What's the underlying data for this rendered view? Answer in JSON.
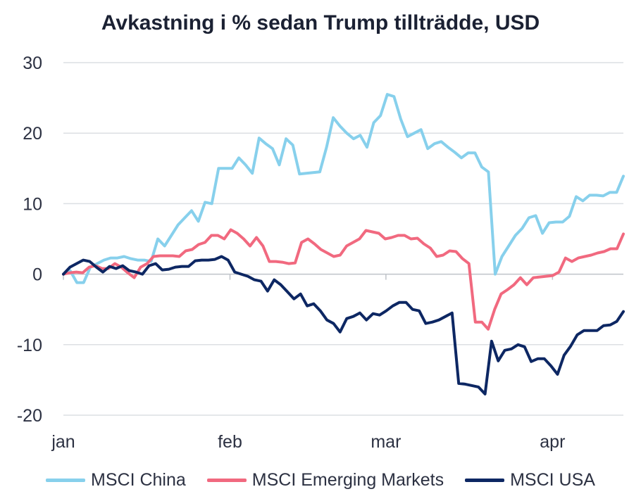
{
  "chart_data": {
    "type": "line",
    "title": "Avkastning i % sedan Trump tillträdde, USD",
    "xlabel": "",
    "ylabel": "",
    "ylim": [
      -20,
      30
    ],
    "yticks": [
      30,
      20,
      10,
      0,
      -10,
      -20
    ],
    "xlim": [
      0,
      79
    ],
    "xticks": [
      {
        "pos": 0,
        "label": "jan"
      },
      {
        "pos": 23.5,
        "label": "feb"
      },
      {
        "pos": 45.5,
        "label": "mar"
      },
      {
        "pos": 69,
        "label": "apr"
      }
    ],
    "grid": true,
    "legend_position": "bottom",
    "series": [
      {
        "name": "MSCI China",
        "color": "#87d0ec",
        "values": [
          0,
          0.5,
          -1.2,
          -1.2,
          1,
          1.5,
          2,
          2.3,
          2.3,
          2.5,
          2.2,
          2,
          2,
          1.8,
          5,
          4,
          5.5,
          7,
          8,
          9,
          7.5,
          10.2,
          10,
          15,
          15,
          15,
          16.5,
          15.5,
          14.3,
          19.3,
          18.5,
          17.8,
          15.5,
          19.2,
          18.3,
          14.2,
          14.3,
          14.4,
          14.5,
          18,
          22.2,
          21,
          20,
          19.2,
          19.7,
          18,
          21.5,
          22.5,
          25.5,
          25.2,
          22,
          19.5,
          20,
          20.5,
          17.8,
          18.5,
          18.8,
          18,
          17.3,
          16.5,
          17.2,
          17.2,
          15.2,
          14.5,
          0,
          2.5,
          4,
          5.5,
          6.5,
          8,
          8.3,
          5.8,
          7.3,
          7.4,
          7.4,
          8.2,
          11,
          10.4,
          11.2,
          11.2,
          11.1,
          11.6,
          11.6,
          13.9
        ]
      },
      {
        "name": "MSCI Emerging Markets",
        "color": "#f1697f",
        "values": [
          0,
          0.2,
          0.3,
          0.2,
          1,
          1.2,
          0.8,
          0.8,
          1.5,
          1,
          0.2,
          -0.5,
          1,
          1.5,
          2.5,
          2.6,
          2.6,
          2.6,
          2.5,
          3.3,
          3.5,
          4.2,
          4.5,
          5.5,
          5.5,
          5,
          6.3,
          5.8,
          5,
          4,
          5.2,
          4,
          1.8,
          1.8,
          1.7,
          1.5,
          1.6,
          4.5,
          5,
          4.3,
          3.5,
          3,
          2.5,
          2.7,
          4,
          4.5,
          5,
          6.2,
          6,
          5.8,
          5,
          5.2,
          5.5,
          5.5,
          5,
          5.1,
          4.3,
          3.7,
          2.5,
          2.7,
          3.3,
          3.2,
          2.2,
          1.5,
          -6.8,
          -6.8,
          -7.8,
          -5,
          -2.8,
          -2.2,
          -1.5,
          -0.5,
          -1.5,
          -0.5,
          -0.4,
          -0.3,
          -0.2,
          0.3,
          2.3,
          1.8,
          2.3,
          2.5,
          2.7,
          3,
          3.2,
          3.6,
          3.6,
          5.7
        ]
      },
      {
        "name": "MSCI USA",
        "color": "#0d2763",
        "values": [
          0,
          1,
          1.5,
          2,
          1.8,
          1,
          0.3,
          1.1,
          0.8,
          1.2,
          0.5,
          0.3,
          0,
          1.2,
          1.5,
          0.6,
          0.7,
          1,
          1.1,
          1.1,
          1.9,
          2,
          2,
          2.1,
          2.5,
          2,
          0.3,
          0,
          -0.3,
          -0.8,
          -1,
          -2.4,
          -0.8,
          -1.5,
          -2.5,
          -3.5,
          -2.8,
          -4.5,
          -4.2,
          -5.2,
          -6.5,
          -7,
          -8.2,
          -6.3,
          -6,
          -5.5,
          -6.5,
          -5.6,
          -5.8,
          -5.2,
          -4.5,
          -4,
          -4,
          -5,
          -5.2,
          -7,
          -6.8,
          -6.5,
          -6,
          -5.5,
          -15.5,
          -15.6,
          -15.8,
          -16,
          -17,
          -9.5,
          -12.3,
          -10.8,
          -10.6,
          -10,
          -10.3,
          -12.4,
          -12,
          -12,
          -13,
          -14.2,
          -11.5,
          -10.2,
          -8.6,
          -8,
          -8,
          -8,
          -7.3,
          -7.2,
          -6.7,
          -5.3
        ]
      }
    ]
  }
}
